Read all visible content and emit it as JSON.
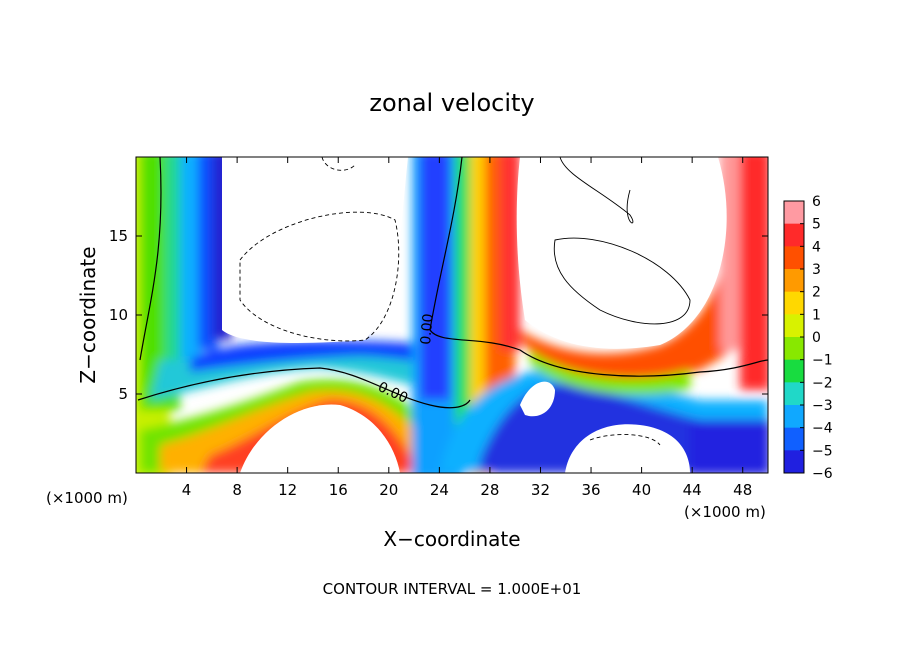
{
  "chart_data": {
    "type": "heatmap",
    "title": "zonal velocity",
    "xlabel": "X−coordinate",
    "ylabel": "Z−coordinate",
    "x_unit_left": "(×1000 m)",
    "x_unit_right": "(×1000 m)",
    "footer": "CONTOUR INTERVAL = 1.000E+01",
    "xlim": [
      0,
      50
    ],
    "ylim": [
      0,
      20
    ],
    "x_ticks": [
      4,
      8,
      12,
      16,
      20,
      24,
      28,
      32,
      36,
      40,
      44,
      48
    ],
    "y_ticks": [
      5,
      10,
      15
    ],
    "colorbar": {
      "labels": [
        "6",
        "5",
        "4",
        "3",
        "2",
        "1",
        "0",
        "−1",
        "−2",
        "−3",
        "−4",
        "−5",
        "−6"
      ],
      "colors": [
        "#ff9aa2",
        "#ff2a2a",
        "#ff5000",
        "#ff9a00",
        "#ffd800",
        "#d8f200",
        "#88e800",
        "#18dc40",
        "#20d8c8",
        "#10a8ff",
        "#1060ff",
        "#2020e0",
        "#6a10a0"
      ]
    },
    "contour_labels": [
      "0.00",
      "0.00"
    ],
    "grid": false
  }
}
